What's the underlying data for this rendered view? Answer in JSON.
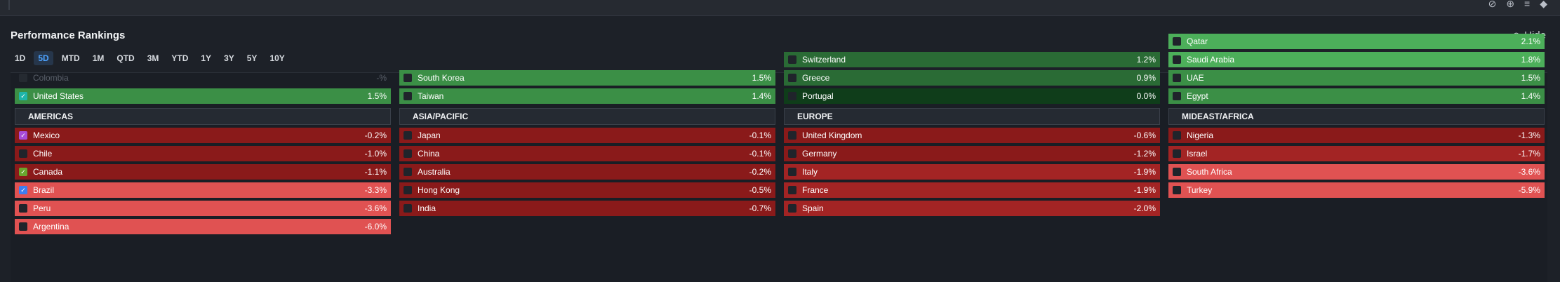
{
  "panel": {
    "title": "Performance Rankings",
    "hide_label": "Hide",
    "periods": [
      "1D",
      "5D",
      "MTD",
      "1M",
      "QTD",
      "3M",
      "YTD",
      "1Y",
      "3Y",
      "5Y",
      "10Y"
    ],
    "active_period": "5D"
  },
  "regions": [
    {
      "name": "AMERICAS",
      "gainers": [
        {
          "name": "Colombia",
          "value": "-%",
          "checked": false,
          "dim": true
        },
        {
          "name": "United States",
          "value": "1.5%",
          "checked": true,
          "check_color": "#1fb5a9"
        }
      ],
      "losers": [
        {
          "name": "Mexico",
          "value": "-0.2%",
          "checked": true,
          "check_color": "#a84bd8"
        },
        {
          "name": "Chile",
          "value": "-1.0%",
          "checked": false
        },
        {
          "name": "Canada",
          "value": "-1.1%",
          "checked": true,
          "check_color": "#6aa52e"
        },
        {
          "name": "Brazil",
          "value": "-3.3%",
          "checked": true,
          "check_color": "#3d7ef0"
        },
        {
          "name": "Peru",
          "value": "-3.6%",
          "checked": false
        },
        {
          "name": "Argentina",
          "value": "-6.0%",
          "checked": false
        }
      ]
    },
    {
      "name": "ASIA/PACIFIC",
      "gainers": [
        {
          "name": "South Korea",
          "value": "1.5%",
          "checked": false
        },
        {
          "name": "Taiwan",
          "value": "1.4%",
          "checked": false
        }
      ],
      "losers": [
        {
          "name": "Japan",
          "value": "-0.1%",
          "checked": false
        },
        {
          "name": "China",
          "value": "-0.1%",
          "checked": false
        },
        {
          "name": "Australia",
          "value": "-0.2%",
          "checked": false
        },
        {
          "name": "Hong Kong",
          "value": "-0.5%",
          "checked": false
        },
        {
          "name": "India",
          "value": "-0.7%",
          "checked": false
        }
      ]
    },
    {
      "name": "EUROPE",
      "gainers": [
        {
          "name": "Switzerland",
          "value": "1.2%",
          "checked": false
        },
        {
          "name": "Greece",
          "value": "0.9%",
          "checked": false
        },
        {
          "name": "Portugal",
          "value": "0.0%",
          "checked": false
        }
      ],
      "losers": [
        {
          "name": "United Kingdom",
          "value": "-0.6%",
          "checked": false
        },
        {
          "name": "Germany",
          "value": "-1.2%",
          "checked": false
        },
        {
          "name": "Italy",
          "value": "-1.9%",
          "checked": false
        },
        {
          "name": "France",
          "value": "-1.9%",
          "checked": false
        },
        {
          "name": "Spain",
          "value": "-2.0%",
          "checked": false
        }
      ]
    },
    {
      "name": "MIDEAST/AFRICA",
      "gainers": [
        {
          "name": "Qatar",
          "value": "2.1%",
          "checked": false
        },
        {
          "name": "Saudi Arabia",
          "value": "1.8%",
          "checked": false
        },
        {
          "name": "UAE",
          "value": "1.5%",
          "checked": false
        },
        {
          "name": "Egypt",
          "value": "1.4%",
          "checked": false
        }
      ],
      "losers": [
        {
          "name": "Nigeria",
          "value": "-1.3%",
          "checked": false
        },
        {
          "name": "Israel",
          "value": "-1.7%",
          "checked": false
        },
        {
          "name": "South Africa",
          "value": "-3.6%",
          "checked": false
        },
        {
          "name": "Turkey",
          "value": "-5.9%",
          "checked": false
        }
      ]
    }
  ],
  "colors": {
    "positive_strong": "#4caf5a",
    "positive_mid": "#3b8f46",
    "positive_weak": "#2a6b35",
    "neutral": "#0f3d1a",
    "negative_weak": "#8a1a1a",
    "negative_mid": "#a32424",
    "negative_strong": "#e05252",
    "accent": "#4da3ff"
  }
}
